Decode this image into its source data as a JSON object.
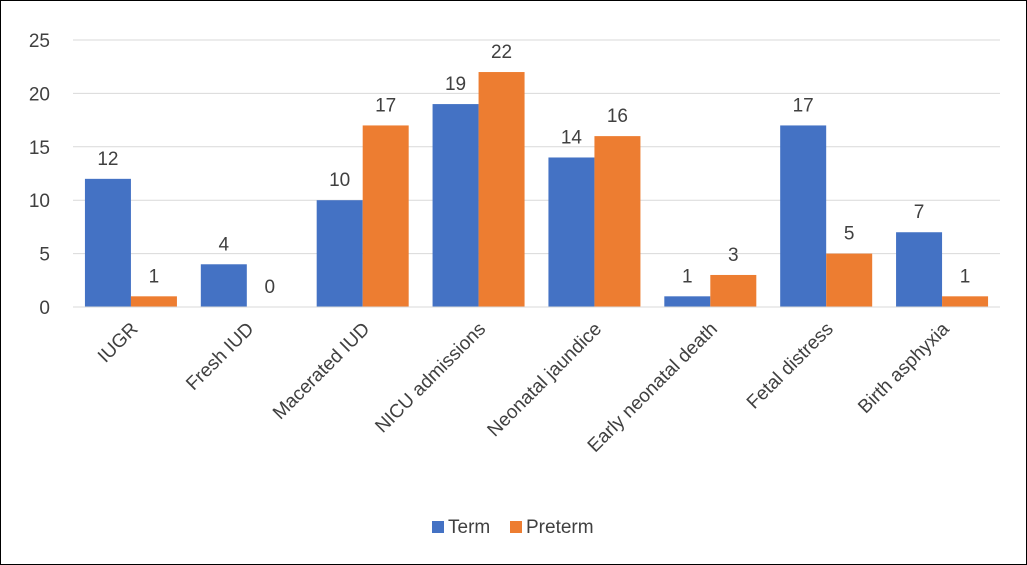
{
  "chart_data": {
    "type": "bar",
    "title": "",
    "xlabel": "",
    "ylabel": "",
    "categories": [
      "IUGR",
      "Fresh IUD",
      "Macerated IUD",
      "NICU admissions",
      "Neonatal jaundice",
      "Early neonatal death",
      "Fetal distress",
      "Birth asphyxia"
    ],
    "series": [
      {
        "name": "Term",
        "values": [
          12,
          4,
          10,
          19,
          14,
          1,
          17,
          7
        ],
        "color": "#4472C4"
      },
      {
        "name": "Preterm",
        "values": [
          1,
          0,
          17,
          22,
          16,
          3,
          5,
          1
        ],
        "color": "#ED7D31"
      }
    ],
    "ylim": [
      0,
      25
    ],
    "yticks": [
      0,
      5,
      10,
      15,
      20,
      25
    ],
    "grid": true,
    "data_labels": true,
    "legend_position": "bottom"
  }
}
